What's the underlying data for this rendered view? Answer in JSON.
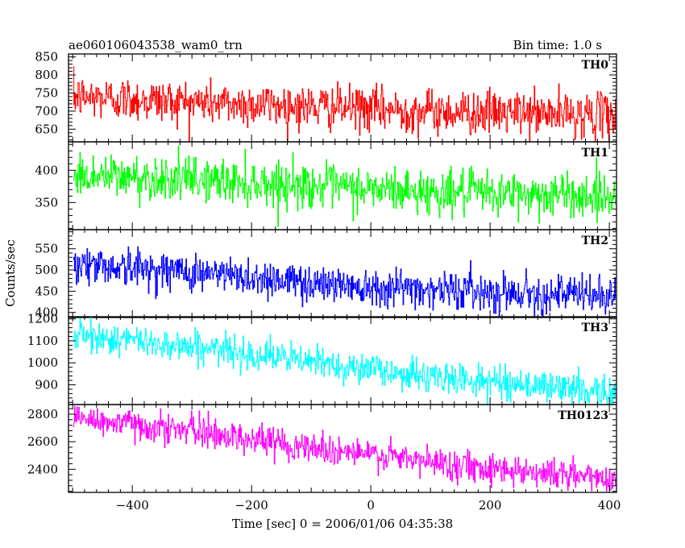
{
  "header": {
    "title": "ae060106043538_wam0_trn",
    "bin_time": "Bin time: 1.0 s"
  },
  "chart_data": {
    "type": "line",
    "title": "ae060106043538_wam0_trn",
    "xlabel": "Time [sec] 0 = 2006/01/06 04:35:38",
    "ylabel": "Counts/sec",
    "xlim": [
      -507,
      412
    ],
    "x_ticks": [
      -400,
      -200,
      0,
      200,
      400
    ],
    "x_tick_labels": [
      "−400",
      "−200",
      "0",
      "200",
      "400"
    ],
    "x_data_range": [
      -499,
      410
    ],
    "bin_time_s": 1.0,
    "grid": false,
    "legend": "none",
    "panels": [
      {
        "name": "TH0",
        "color": "#ff0000",
        "ylim": [
          615,
          858
        ],
        "yticks": [
          650,
          700,
          750,
          800,
          850
        ],
        "trend": [
          [
            -499,
            740
          ],
          [
            -300,
            725
          ],
          [
            -100,
            712
          ],
          [
            100,
            700
          ],
          [
            410,
            688
          ]
        ],
        "noise_sd": 30,
        "observed_range": [
          615,
          858
        ]
      },
      {
        "name": "TH1",
        "color": "#00ff00",
        "ylim": [
          308,
          444
        ],
        "yticks": [
          350,
          400
        ],
        "trend": [
          [
            -499,
            392
          ],
          [
            -300,
            386
          ],
          [
            -100,
            376
          ],
          [
            100,
            366
          ],
          [
            410,
            360
          ]
        ],
        "noise_sd": 17,
        "observed_range": [
          308,
          444
        ]
      },
      {
        "name": "TH2",
        "color": "#0000ff",
        "ylim": [
          388,
          595
        ],
        "yticks": [
          400,
          450,
          500,
          550
        ],
        "trend": [
          [
            -499,
            515
          ],
          [
            -300,
            495
          ],
          [
            -100,
            470
          ],
          [
            100,
            455
          ],
          [
            410,
            438
          ]
        ],
        "noise_sd": 22,
        "observed_range": [
          388,
          595
        ]
      },
      {
        "name": "TH3",
        "color": "#00ffff",
        "ylim": [
          810,
          1210
        ],
        "yticks": [
          900,
          1000,
          1100,
          1200
        ],
        "trend": [
          [
            -499,
            1125
          ],
          [
            -300,
            1075
          ],
          [
            -100,
            1005
          ],
          [
            100,
            935
          ],
          [
            410,
            868
          ]
        ],
        "noise_sd": 35,
        "observed_range": [
          810,
          1210
        ]
      },
      {
        "name": "TH0123",
        "color": "#ff00ff",
        "ylim": [
          2232,
          2870
        ],
        "yticks": [
          2400,
          2600,
          2800
        ],
        "trend": [
          [
            -499,
            2770
          ],
          [
            -300,
            2680
          ],
          [
            -100,
            2560
          ],
          [
            100,
            2450
          ],
          [
            410,
            2330
          ]
        ],
        "noise_sd": 55,
        "observed_range": [
          2232,
          2870
        ]
      }
    ]
  }
}
